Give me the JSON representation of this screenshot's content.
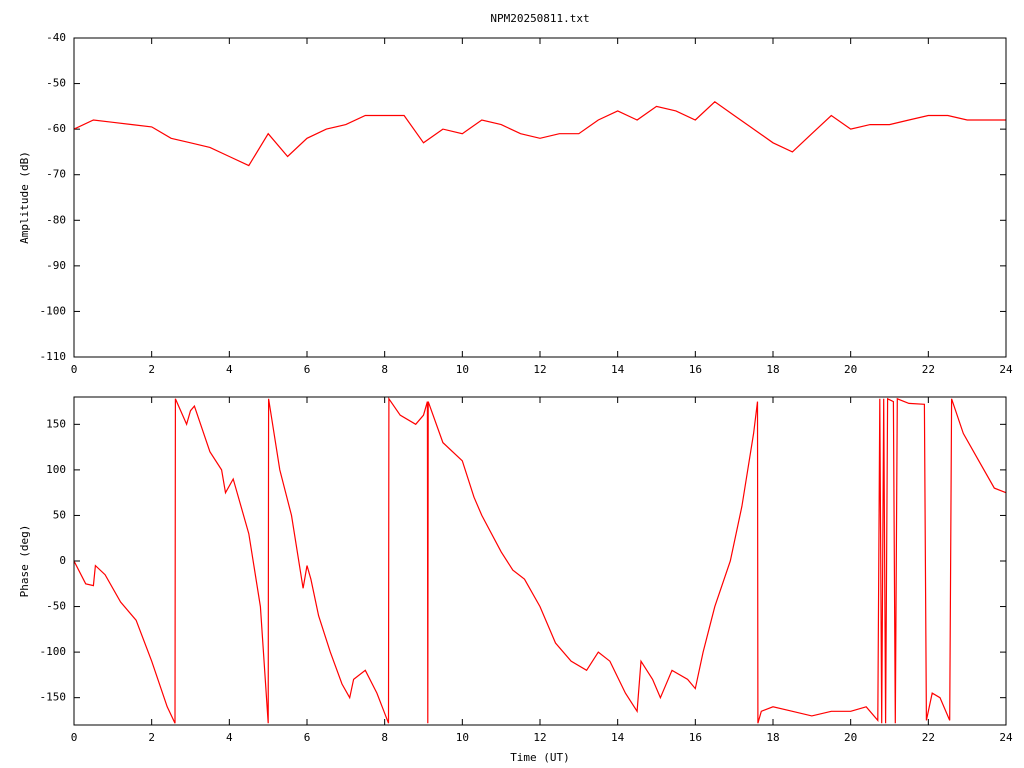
{
  "chart_data": [
    {
      "type": "line",
      "title": "NPM20250811.txt",
      "ylabel": "Amplitude (dB)",
      "color": "#ff0000",
      "x": [
        0,
        0.5,
        1,
        1.5,
        2,
        2.5,
        3,
        3.5,
        4,
        4.5,
        5,
        5.5,
        6,
        6.5,
        7,
        7.5,
        8,
        8.5,
        9,
        9.5,
        10,
        10.5,
        11,
        11.5,
        12,
        12.5,
        13,
        13.5,
        14,
        14.5,
        15,
        15.5,
        16,
        16.5,
        17,
        17.5,
        18,
        18.5,
        19,
        19.5,
        20,
        20.5,
        21,
        21.5,
        22,
        22.5,
        23,
        23.5,
        24
      ],
      "values": [
        -60,
        -58,
        -58.5,
        -59,
        -59.5,
        -62,
        -63,
        -64,
        -66,
        -68,
        -61,
        -66,
        -62,
        -60,
        -59,
        -57,
        -57,
        -57,
        -63,
        -60,
        -61,
        -58,
        -59,
        -61,
        -62,
        -61,
        -61,
        -58,
        -56,
        -58,
        -55,
        -56,
        -58,
        -54,
        -57,
        -60,
        -63,
        -65,
        -61,
        -57,
        -60,
        -59,
        -59,
        -58,
        -57,
        -57,
        -58,
        -58,
        -58
      ],
      "xlim": [
        0,
        24
      ],
      "xticks": [
        0,
        2,
        4,
        6,
        8,
        10,
        12,
        14,
        16,
        18,
        20,
        22,
        24
      ],
      "ylim": [
        -110,
        -40
      ],
      "yticks": [
        -40,
        -50,
        -60,
        -70,
        -80,
        -90,
        -100,
        -110
      ]
    },
    {
      "type": "line",
      "xlabel": "Time (UT)",
      "ylabel": "Phase (deg)",
      "color": "#ff0000",
      "x": [
        0,
        0.3,
        0.5,
        0.55,
        0.8,
        1.2,
        1.6,
        2,
        2.4,
        2.6,
        2.61,
        2.9,
        3.0,
        3.1,
        3.5,
        3.8,
        3.9,
        4.1,
        4.5,
        4.8,
        5.0,
        5.01,
        5.3,
        5.6,
        5.9,
        6.0,
        6.1,
        6.3,
        6.6,
        6.9,
        7.1,
        7.2,
        7.5,
        7.8,
        8.1,
        8.11,
        8.4,
        8.8,
        9.0,
        9.1,
        9.11,
        9.12,
        9.5,
        10,
        10.3,
        10.5,
        11,
        11.3,
        11.6,
        12,
        12.4,
        12.8,
        13.2,
        13.5,
        13.8,
        14.2,
        14.5,
        14.6,
        14.9,
        15.1,
        15.4,
        15.8,
        16,
        16.2,
        16.5,
        16.9,
        17.2,
        17.5,
        17.6,
        17.61,
        17.7,
        18,
        18.5,
        19,
        19.5,
        20,
        20.4,
        20.7,
        20.75,
        20.8,
        20.85,
        20.9,
        20.95,
        21.1,
        21.15,
        21.2,
        21.5,
        21.9,
        21.95,
        22.1,
        22.3,
        22.55,
        22.6,
        22.9,
        23.3,
        23.7,
        24
      ],
      "values": [
        0,
        -25,
        -27,
        -5,
        -15,
        -45,
        -65,
        -110,
        -160,
        -178,
        178,
        150,
        165,
        170,
        120,
        100,
        75,
        90,
        30,
        -50,
        -178,
        178,
        100,
        50,
        -30,
        -5,
        -20,
        -60,
        -100,
        -135,
        -150,
        -130,
        -120,
        -145,
        -178,
        178,
        160,
        150,
        160,
        175,
        -178,
        175,
        130,
        110,
        70,
        50,
        10,
        -10,
        -20,
        -50,
        -90,
        -110,
        -120,
        -100,
        -110,
        -145,
        -165,
        -110,
        -130,
        -150,
        -120,
        -130,
        -140,
        -100,
        -50,
        0,
        60,
        140,
        175,
        -178,
        -165,
        -160,
        -165,
        -170,
        -165,
        -165,
        -160,
        -175,
        178,
        -178,
        178,
        -178,
        178,
        175,
        -178,
        178,
        173,
        172,
        -175,
        -145,
        -150,
        -175,
        178,
        140,
        110,
        80,
        75
      ],
      "xlim": [
        0,
        24
      ],
      "xticks": [
        0,
        2,
        4,
        6,
        8,
        10,
        12,
        14,
        16,
        18,
        20,
        22,
        24
      ],
      "ylim": [
        -180,
        180
      ],
      "yticks": [
        150,
        100,
        50,
        0,
        -50,
        -100,
        -150
      ]
    }
  ]
}
